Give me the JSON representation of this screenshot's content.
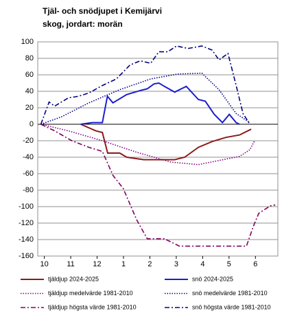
{
  "chart_data": {
    "type": "line",
    "title": "Tjäl- och snödjupet i Kemijärvi",
    "subtitle": "skog, jordart: morän",
    "xlim": [
      -0.25,
      8.85
    ],
    "xticks": [
      {
        "value": 0,
        "label": "10"
      },
      {
        "value": 1,
        "label": "11"
      },
      {
        "value": 2,
        "label": "12"
      },
      {
        "value": 3,
        "label": "1"
      },
      {
        "value": 4,
        "label": "2"
      },
      {
        "value": 5,
        "label": "3"
      },
      {
        "value": 6,
        "label": "4"
      },
      {
        "value": 7,
        "label": "5"
      },
      {
        "value": 8,
        "label": "6"
      }
    ],
    "ylim": [
      -160,
      100
    ],
    "yticks": [
      -160,
      -140,
      -120,
      -100,
      -80,
      -60,
      -40,
      -20,
      0,
      20,
      40,
      60,
      80,
      100
    ],
    "grid": true,
    "legend": "bottom",
    "series": [
      {
        "name": "tjäldjup 2024-2025",
        "color": "#8b1a1a",
        "dash": "solid",
        "x": [
          1.38,
          1.95,
          2.2,
          2.4,
          2.86,
          3.12,
          3.77,
          4.94,
          5.32,
          5.84,
          6.36,
          6.88,
          7.4,
          7.84
        ],
        "values": [
          0,
          -8,
          -10,
          -35,
          -35,
          -40,
          -43,
          -43,
          -40,
          -28,
          -21,
          -16,
          -13,
          -6
        ]
      },
      {
        "name": "snö 2024-2025",
        "color": "#1c1cd0",
        "dash": "solid",
        "x": [
          1.38,
          1.82,
          2.2,
          2.39,
          2.6,
          3.12,
          3.64,
          3.9,
          4.16,
          4.34,
          4.55,
          4.94,
          5.38,
          5.84,
          6.1,
          6.44,
          6.75,
          7.01,
          7.27,
          7.4
        ],
        "values": [
          0,
          2,
          2,
          34,
          26,
          36,
          41,
          43,
          49,
          50,
          46,
          39,
          46,
          30,
          28,
          12,
          2,
          12,
          2,
          0
        ]
      },
      {
        "name": "tjäldjup medelvärde 1981-2010",
        "color": "#800080",
        "dash": "dotted",
        "x": [
          -0.13,
          0.91,
          2.2,
          3.5,
          4.8,
          5.84,
          6.62,
          7.4,
          7.79,
          7.97
        ],
        "values": [
          0,
          -8,
          -20,
          -34,
          -46,
          -49,
          -44,
          -39,
          -31,
          -20
        ]
      },
      {
        "name": "snö medelvärde 1981-2010",
        "color": "#00008b",
        "dash": "dotted",
        "x": [
          -0.13,
          0.65,
          1.69,
          2.86,
          4.03,
          5.06,
          5.97,
          6.62,
          7.27,
          7.79
        ],
        "values": [
          0,
          9,
          26,
          42,
          55,
          61,
          62,
          42,
          13,
          2
        ]
      },
      {
        "name": "tjäldjup högsta värde 1981-2010",
        "color": "#800060",
        "dash": "dashdot",
        "x": [
          -0.13,
          0.39,
          1.04,
          1.69,
          2.2,
          2.6,
          2.99,
          3.5,
          3.9,
          4.55,
          5.12,
          7.66,
          7.92,
          8.13,
          8.57,
          8.75
        ],
        "values": [
          0,
          -8,
          -20,
          -28,
          -33,
          -62,
          -78,
          -116,
          -139,
          -139,
          -148,
          -148,
          -124,
          -108,
          -99,
          -98
        ]
      },
      {
        "name": "snö högsta värde 1981-2010",
        "color": "#000080",
        "dash": "dashdot",
        "x": [
          -0.13,
          0.18,
          0.39,
          0.91,
          1.3,
          1.69,
          2.2,
          2.73,
          3.25,
          3.64,
          4.03,
          4.34,
          4.68,
          5.01,
          5.45,
          5.97,
          6.36,
          6.62,
          6.96,
          7.27,
          7.53,
          7.79
        ],
        "values": [
          0,
          27,
          22,
          32,
          34,
          38,
          47,
          55,
          72,
          77,
          74,
          88,
          88,
          95,
          92,
          95,
          90,
          78,
          86,
          47,
          13,
          0
        ]
      }
    ]
  }
}
